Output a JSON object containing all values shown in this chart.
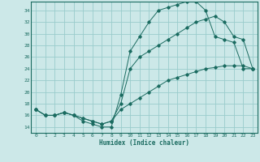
{
  "title": "",
  "xlabel": "Humidex (Indice chaleur)",
  "ylabel": "",
  "bg_color": "#cce8e8",
  "grid_color": "#99cccc",
  "line_color": "#1a6b60",
  "xlim": [
    -0.5,
    23.5
  ],
  "ylim": [
    13.0,
    35.5
  ],
  "xticks": [
    0,
    1,
    2,
    3,
    4,
    5,
    6,
    7,
    8,
    9,
    10,
    11,
    12,
    13,
    14,
    15,
    16,
    17,
    18,
    19,
    20,
    21,
    22,
    23
  ],
  "yticks": [
    14,
    16,
    18,
    20,
    22,
    24,
    26,
    28,
    30,
    32,
    34
  ],
  "curve1_x": [
    0,
    1,
    2,
    3,
    4,
    5,
    6,
    7,
    8,
    9,
    10,
    11,
    12,
    13,
    14,
    15,
    16,
    17,
    18,
    19,
    20,
    21,
    22,
    23
  ],
  "curve1_y": [
    17,
    16,
    16,
    16.5,
    16,
    15,
    14.5,
    14,
    14,
    19.5,
    27,
    29.5,
    32,
    34,
    34.5,
    35,
    35.5,
    35.5,
    34,
    29.5,
    29,
    28.5,
    24,
    24
  ],
  "curve2_x": [
    0,
    1,
    2,
    3,
    4,
    5,
    6,
    7,
    8,
    9,
    10,
    11,
    12,
    13,
    14,
    15,
    16,
    17,
    18,
    19,
    20,
    21,
    22,
    23
  ],
  "curve2_y": [
    17,
    16,
    16,
    16.5,
    16,
    15.5,
    15,
    14.5,
    15,
    18,
    24,
    26,
    27,
    28,
    29,
    30,
    31,
    32,
    32.5,
    33,
    32,
    29.5,
    29,
    24
  ],
  "curve3_x": [
    0,
    1,
    2,
    3,
    4,
    5,
    6,
    7,
    8,
    9,
    10,
    11,
    12,
    13,
    14,
    15,
    16,
    17,
    18,
    19,
    20,
    21,
    22,
    23
  ],
  "curve3_y": [
    17,
    16,
    16,
    16.5,
    16,
    15.5,
    15,
    14.5,
    15,
    17,
    18,
    19,
    20,
    21,
    22,
    22.5,
    23,
    23.5,
    24,
    24.2,
    24.5,
    24.5,
    24.5,
    24
  ]
}
